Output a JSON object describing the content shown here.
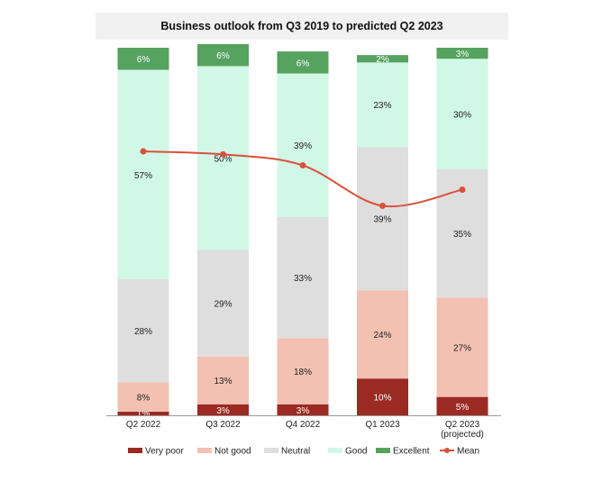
{
  "chart_data": {
    "type": "bar",
    "stacked": true,
    "title": "Business outlook from Q3 2019 to predicted Q2 2023",
    "categories": [
      "Q2 2022",
      "Q3 2022",
      "Q4 2022",
      "Q1 2023",
      "Q2 2023 (projected)"
    ],
    "category_lines": [
      [
        "Q2 2022"
      ],
      [
        "Q3 2022"
      ],
      [
        "Q4 2022"
      ],
      [
        "Q1 2023"
      ],
      [
        "Q2 2023",
        "(projected)"
      ]
    ],
    "series": [
      {
        "name": "Very poor",
        "color": "#9b2a22",
        "label_color": "#ffffff",
        "values": [
          1,
          3,
          3,
          10,
          5
        ]
      },
      {
        "name": "Not good",
        "color": "#f3c1b2",
        "label_color": "#222222",
        "values": [
          8,
          13,
          18,
          24,
          27
        ]
      },
      {
        "name": "Neutral",
        "color": "#dedede",
        "label_color": "#222222",
        "values": [
          28,
          29,
          33,
          39,
          35
        ]
      },
      {
        "name": "Good",
        "color": "#d1f7e6",
        "label_color": "#222222",
        "values": [
          57,
          50,
          39,
          23,
          30
        ]
      },
      {
        "name": "Excellent",
        "color": "#56a25f",
        "label_color": "#ffffff",
        "values": [
          6,
          6,
          6,
          2,
          3
        ]
      }
    ],
    "mean": {
      "name": "Mean",
      "color": "#d9503a",
      "values": [
        3.59,
        3.55,
        3.4,
        2.85,
        3.07
      ]
    },
    "ylim": [
      0,
      100
    ],
    "mean_scale_ylim": [
      0,
      5
    ],
    "legend": "bottom",
    "grid": false
  }
}
